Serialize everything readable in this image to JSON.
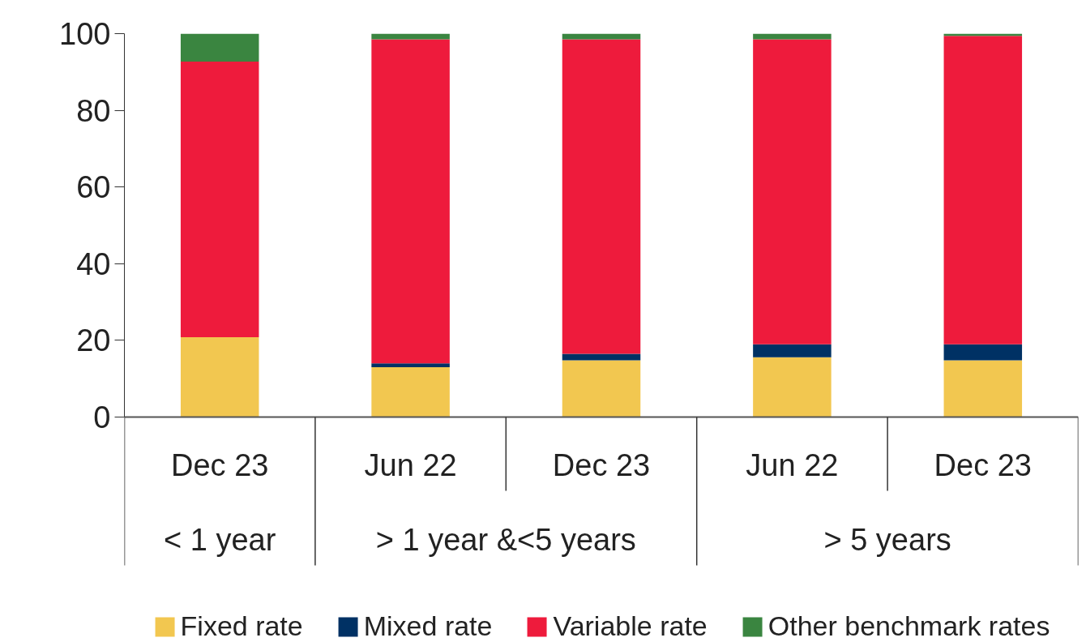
{
  "chart_data": {
    "type": "bar",
    "stacked": true,
    "categories": [
      "Dec 23",
      "Jun 22",
      "Dec 23",
      "Jun 22",
      "Dec 23"
    ],
    "series": [
      {
        "name": "Fixed rate",
        "color": "#f2c750",
        "values": [
          20.8,
          13.0,
          14.8,
          15.6,
          14.8
        ]
      },
      {
        "name": "Mixed rate",
        "color": "#003164",
        "values": [
          0,
          1.0,
          1.7,
          3.4,
          4.2
        ]
      },
      {
        "name": "Variable rate",
        "color": "#ee1b3c",
        "values": [
          71.9,
          84.5,
          82.0,
          79.5,
          80.4
        ]
      },
      {
        "name": "Other benchmark rates",
        "color": "#3a8540",
        "values": [
          7.3,
          1.5,
          1.5,
          1.5,
          0.6
        ]
      }
    ],
    "annotations": [
      "< 1 year",
      "> 1 year &<5 years",
      "> 5 years"
    ],
    "ylim": [
      0,
      100
    ],
    "yticks": [
      0,
      20,
      40,
      60,
      80,
      100
    ],
    "grid": false,
    "legend": "bottom"
  }
}
